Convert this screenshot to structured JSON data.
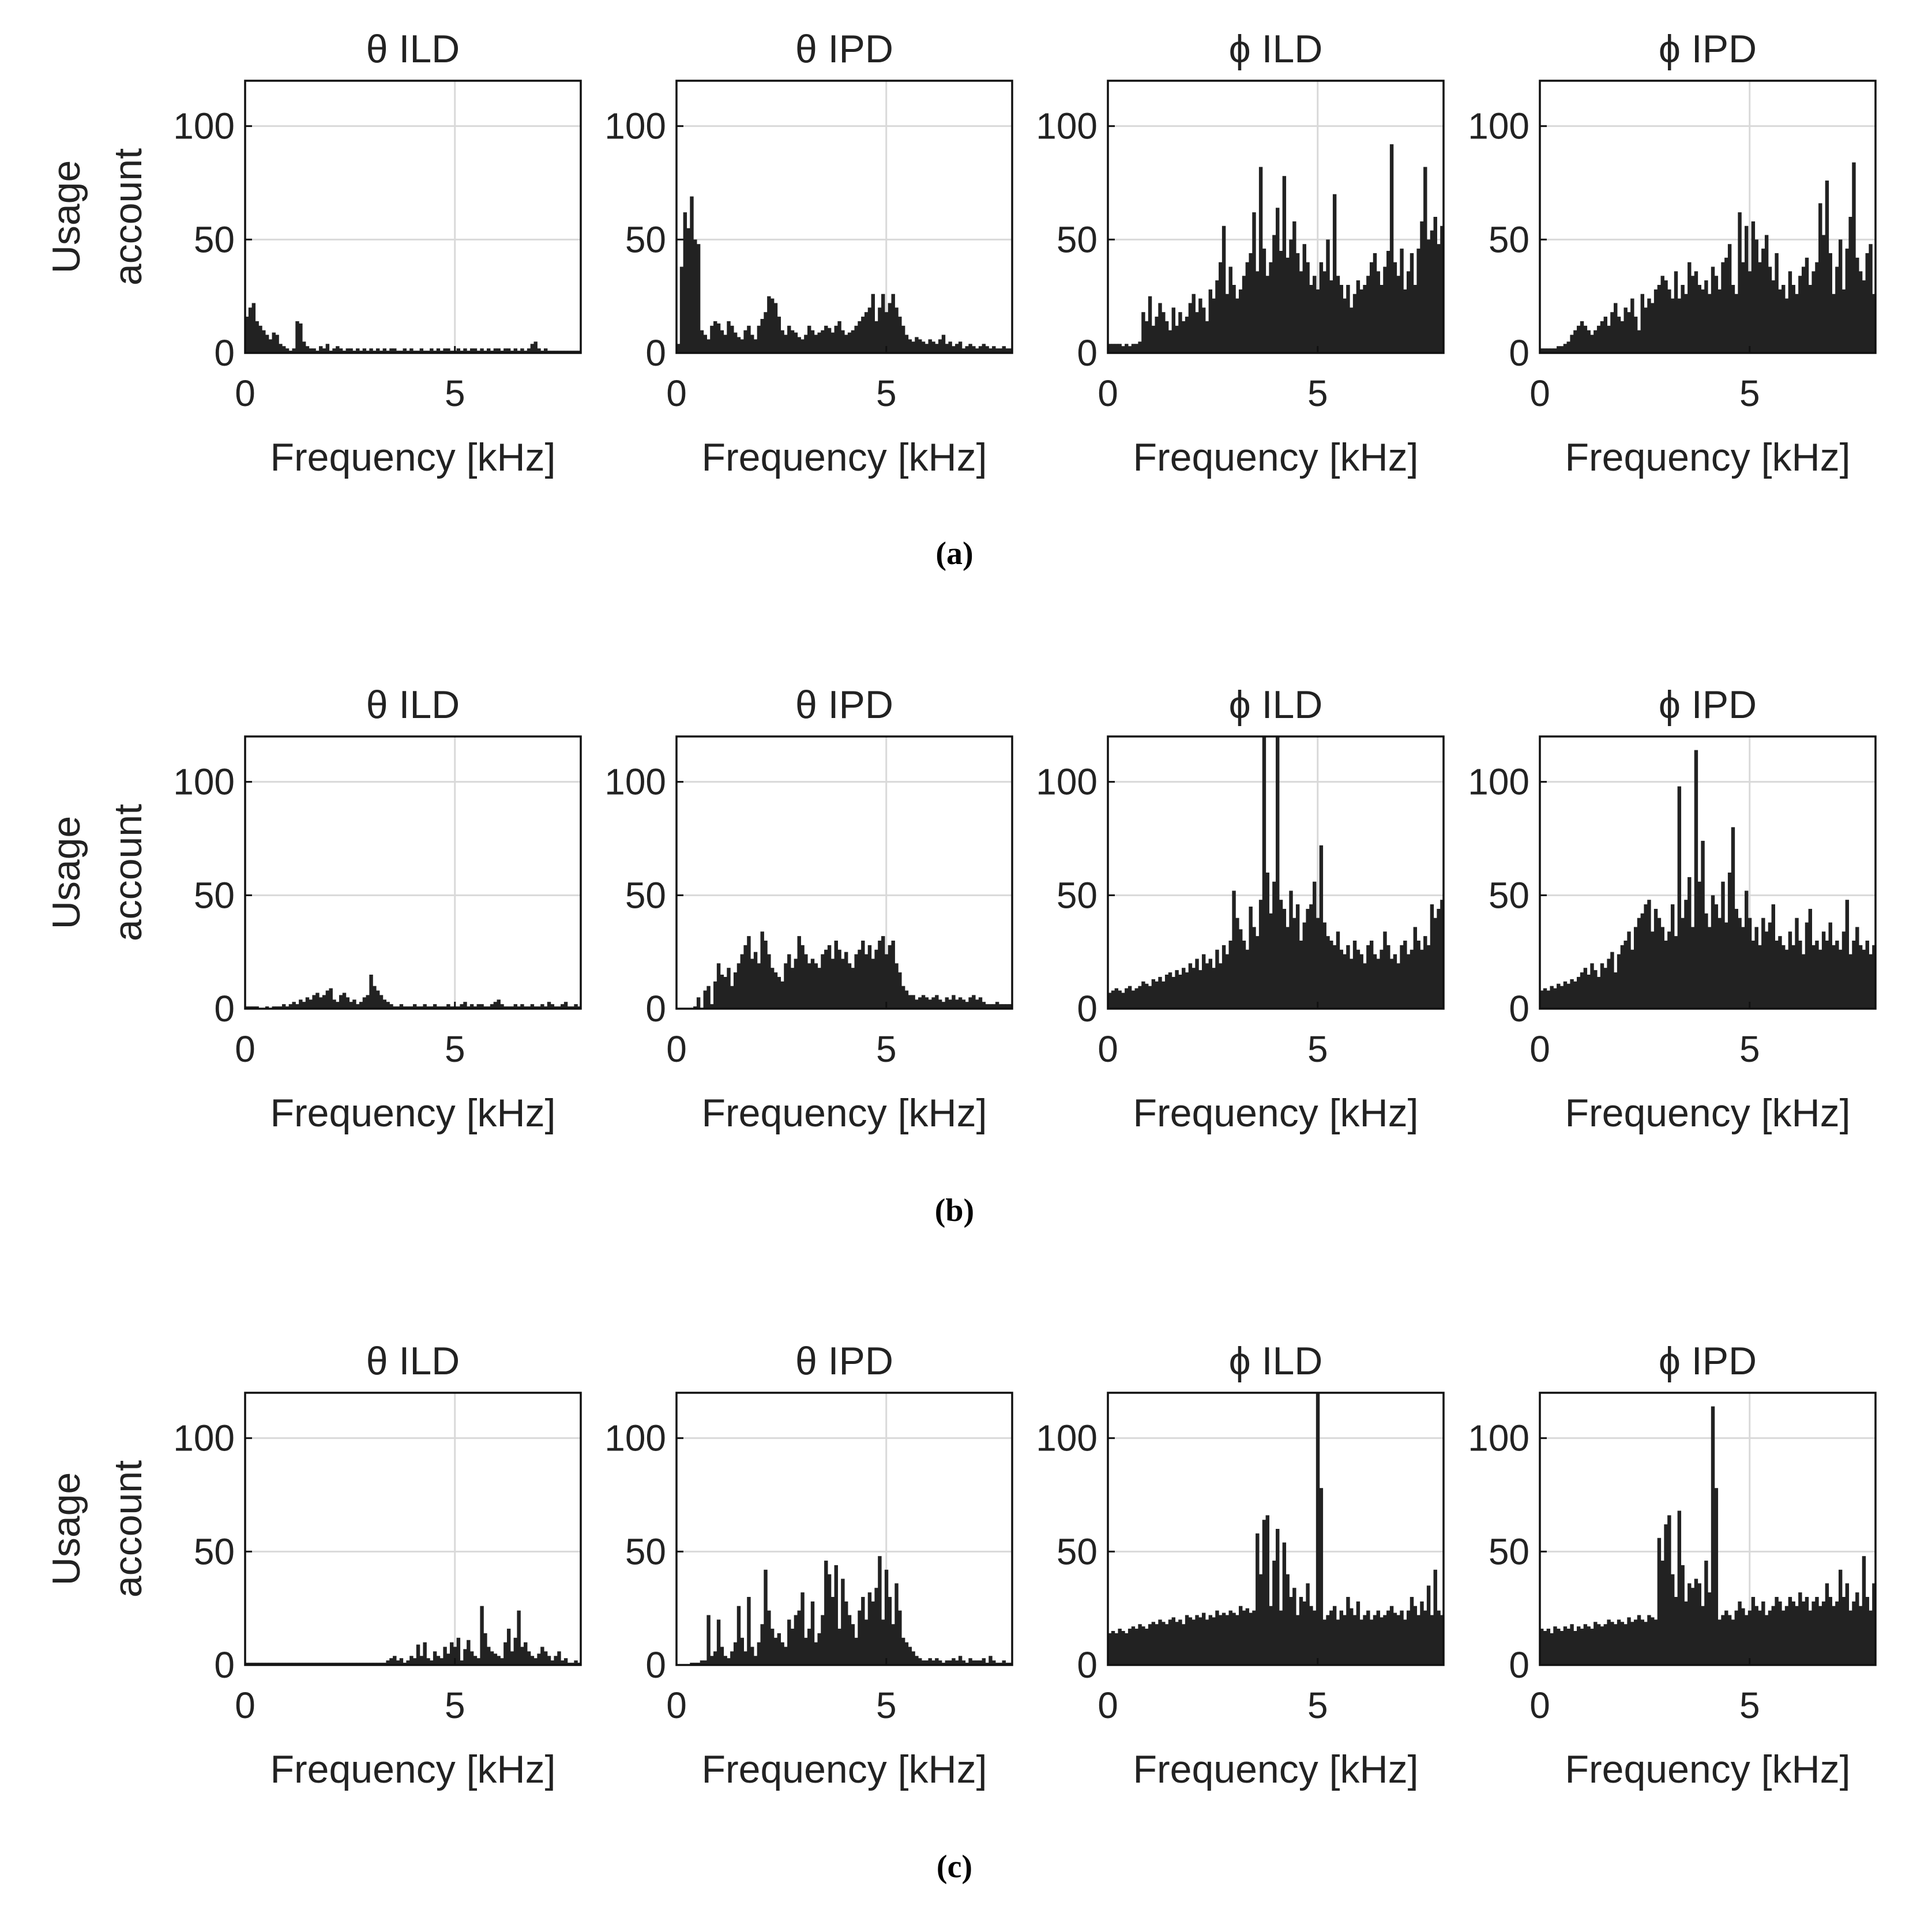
{
  "figure": {
    "ylabel_line1": "Usage",
    "ylabel_line2": "account",
    "row_captions": [
      "(a)",
      "(b)",
      "(c)"
    ],
    "bar_color": "#222222",
    "grid_color": "#d9d9d9"
  },
  "chart_data": [
    {
      "type": "bar",
      "row": "(a)",
      "title": "θ ILD",
      "xlabel": "Frequency [kHz]",
      "ylabel": "Usage account",
      "xlim": [
        0,
        8
      ],
      "ylim": [
        0,
        120
      ],
      "xticks": [
        0,
        5
      ],
      "yticks": [
        0,
        50,
        100
      ],
      "grid": true,
      "x_start": 0,
      "x_end": 8,
      "values": [
        16,
        20,
        22,
        14,
        12,
        10,
        8,
        6,
        9,
        8,
        4,
        3,
        2,
        1,
        2,
        14,
        13,
        5,
        3,
        2,
        2,
        1,
        3,
        2,
        4,
        1,
        2,
        3,
        2,
        1,
        2,
        2,
        1,
        2,
        1,
        2,
        1,
        2,
        1,
        2,
        1,
        2,
        1,
        2,
        2,
        1,
        1,
        2,
        1,
        2,
        1,
        1,
        2,
        1,
        1,
        2,
        1,
        2,
        1,
        2,
        2,
        1,
        1,
        2,
        1,
        2,
        1,
        2,
        2,
        1,
        2,
        1,
        2,
        1,
        2,
        2,
        1,
        2,
        2,
        1,
        2,
        1,
        2,
        1,
        2,
        4,
        5,
        2,
        1,
        2,
        1,
        1,
        1,
        1,
        1,
        1,
        1,
        1,
        1,
        1
      ]
    },
    {
      "type": "bar",
      "row": "(a)",
      "title": "θ IPD",
      "xlabel": "Frequency [kHz]",
      "ylabel": "Usage account",
      "xlim": [
        0,
        8
      ],
      "ylim": [
        0,
        120
      ],
      "xticks": [
        0,
        5
      ],
      "yticks": [
        0,
        50,
        100
      ],
      "grid": true,
      "x_start": 0,
      "x_end": 8,
      "values": [
        4,
        38,
        62,
        55,
        69,
        50,
        48,
        10,
        8,
        6,
        12,
        14,
        13,
        10,
        8,
        14,
        12,
        9,
        7,
        6,
        10,
        12,
        8,
        6,
        12,
        15,
        18,
        25,
        24,
        22,
        16,
        10,
        8,
        12,
        10,
        9,
        7,
        6,
        8,
        12,
        10,
        8,
        9,
        10,
        12,
        11,
        9,
        12,
        14,
        10,
        8,
        9,
        10,
        12,
        14,
        16,
        18,
        20,
        26,
        14,
        20,
        26,
        18,
        22,
        26,
        20,
        16,
        12,
        8,
        6,
        5,
        7,
        6,
        5,
        4,
        6,
        5,
        4,
        6,
        8,
        4,
        5,
        3,
        4,
        5,
        2,
        3,
        4,
        3,
        2,
        3,
        4,
        3,
        2,
        3,
        2,
        2,
        3,
        2,
        2
      ]
    },
    {
      "type": "bar",
      "row": "(a)",
      "title": "ϕ ILD",
      "xlabel": "Frequency [kHz]",
      "ylabel": "Usage account",
      "xlim": [
        0,
        8
      ],
      "ylim": [
        0,
        120
      ],
      "xticks": [
        0,
        5
      ],
      "yticks": [
        0,
        50,
        100
      ],
      "grid": true,
      "x_start": 0,
      "x_end": 8,
      "values": [
        4,
        4,
        4,
        4,
        3,
        4,
        3,
        4,
        4,
        5,
        18,
        14,
        25,
        12,
        16,
        22,
        18,
        14,
        10,
        20,
        12,
        18,
        14,
        16,
        22,
        26,
        18,
        24,
        20,
        14,
        28,
        24,
        32,
        40,
        56,
        26,
        38,
        30,
        24,
        28,
        34,
        40,
        44,
        62,
        36,
        82,
        46,
        34,
        40,
        52,
        64,
        45,
        78,
        42,
        50,
        58,
        44,
        36,
        48,
        40,
        30,
        34,
        28,
        40,
        36,
        50,
        32,
        70,
        34,
        30,
        24,
        30,
        20,
        26,
        32,
        28,
        30,
        34,
        40,
        44,
        36,
        30,
        38,
        45,
        92,
        40,
        34,
        46,
        28,
        36,
        44,
        30,
        46,
        58,
        82,
        50,
        54,
        60,
        48,
        56
      ]
    },
    {
      "type": "bar",
      "row": "(a)",
      "title": "ϕ IPD",
      "xlabel": "Frequency [kHz]",
      "ylabel": "Usage account",
      "xlim": [
        0,
        8
      ],
      "ylim": [
        0,
        120
      ],
      "xticks": [
        0,
        5
      ],
      "yticks": [
        0,
        50,
        100
      ],
      "grid": true,
      "x_start": 0,
      "x_end": 8,
      "values": [
        2,
        2,
        2,
        2,
        2,
        3,
        3,
        4,
        5,
        8,
        10,
        12,
        14,
        12,
        10,
        8,
        10,
        12,
        14,
        16,
        12,
        18,
        22,
        16,
        14,
        20,
        18,
        24,
        16,
        10,
        26,
        20,
        24,
        22,
        28,
        30,
        34,
        32,
        28,
        24,
        36,
        24,
        30,
        26,
        40,
        34,
        36,
        30,
        28,
        32,
        26,
        38,
        34,
        28,
        40,
        42,
        48,
        30,
        26,
        62,
        40,
        56,
        36,
        58,
        50,
        40,
        46,
        52,
        38,
        32,
        44,
        28,
        30,
        24,
        36,
        30,
        26,
        34,
        38,
        42,
        30,
        36,
        40,
        66,
        52,
        76,
        44,
        26,
        38,
        50,
        28,
        46,
        60,
        84,
        42,
        36,
        32,
        44,
        48,
        26
      ]
    },
    {
      "type": "bar",
      "row": "(b)",
      "title": "θ ILD",
      "xlabel": "Frequency [kHz]",
      "ylabel": "Usage account",
      "xlim": [
        0,
        8
      ],
      "ylim": [
        0,
        120
      ],
      "xticks": [
        0,
        5
      ],
      "yticks": [
        0,
        50,
        100
      ],
      "grid": true,
      "x_start": 0,
      "x_end": 8,
      "values": [
        1,
        1,
        1,
        1,
        0,
        0,
        1,
        0,
        1,
        1,
        1,
        2,
        1,
        2,
        3,
        2,
        4,
        3,
        5,
        4,
        6,
        7,
        5,
        6,
        8,
        9,
        4,
        3,
        6,
        7,
        5,
        3,
        4,
        2,
        3,
        5,
        6,
        15,
        10,
        8,
        6,
        4,
        3,
        2,
        1,
        1,
        2,
        1,
        1,
        1,
        2,
        1,
        1,
        2,
        1,
        1,
        2,
        1,
        1,
        1,
        2,
        1,
        1,
        1,
        2,
        3,
        1,
        2,
        1,
        2,
        2,
        1,
        1,
        2,
        3,
        4,
        2,
        1,
        1,
        1,
        2,
        1,
        2,
        1,
        1,
        2,
        1,
        1,
        2,
        1,
        3,
        2,
        1,
        1,
        2,
        3,
        1,
        1,
        2,
        1
      ]
    },
    {
      "type": "bar",
      "row": "(b)",
      "title": "θ IPD",
      "xlabel": "Frequency [kHz]",
      "ylabel": "Usage account",
      "xlim": [
        0,
        8
      ],
      "ylim": [
        0,
        120
      ],
      "xticks": [
        0,
        5
      ],
      "yticks": [
        0,
        50,
        100
      ],
      "grid": true,
      "x_start": 0,
      "x_end": 8,
      "values": [
        0,
        0,
        0,
        0,
        0,
        1,
        5,
        0,
        8,
        10,
        2,
        12,
        20,
        15,
        14,
        18,
        10,
        16,
        20,
        24,
        28,
        32,
        22,
        25,
        20,
        34,
        30,
        24,
        18,
        16,
        14,
        12,
        20,
        24,
        18,
        22,
        32,
        28,
        24,
        20,
        22,
        20,
        18,
        24,
        26,
        28,
        22,
        30,
        26,
        22,
        25,
        20,
        18,
        24,
        26,
        30,
        24,
        28,
        22,
        26,
        30,
        32,
        24,
        28,
        30,
        20,
        16,
        10,
        8,
        6,
        6,
        4,
        5,
        6,
        5,
        4,
        5,
        6,
        4,
        3,
        5,
        4,
        6,
        4,
        5,
        4,
        3,
        5,
        6,
        4,
        5,
        3,
        2,
        2,
        2,
        3,
        2,
        2,
        2,
        2
      ]
    },
    {
      "type": "bar",
      "row": "(b)",
      "title": "ϕ ILD",
      "xlabel": "Frequency [kHz]",
      "ylabel": "Usage account",
      "xlim": [
        0,
        8
      ],
      "ylim": [
        0,
        120
      ],
      "xticks": [
        0,
        5
      ],
      "yticks": [
        0,
        50,
        100
      ],
      "grid": true,
      "x_start": 0,
      "x_end": 8,
      "values": [
        7,
        8,
        9,
        8,
        7,
        9,
        10,
        8,
        9,
        10,
        12,
        11,
        10,
        13,
        12,
        14,
        12,
        15,
        16,
        14,
        17,
        15,
        18,
        16,
        20,
        18,
        22,
        17,
        24,
        20,
        22,
        18,
        26,
        20,
        28,
        24,
        30,
        52,
        40,
        35,
        30,
        26,
        45,
        36,
        32,
        48,
        125,
        60,
        42,
        56,
        120,
        48,
        44,
        36,
        52,
        40,
        46,
        30,
        38,
        44,
        46,
        56,
        40,
        72,
        38,
        32,
        30,
        28,
        34,
        26,
        24,
        28,
        22,
        30,
        26,
        24,
        20,
        28,
        30,
        24,
        22,
        26,
        34,
        28,
        22,
        24,
        20,
        28,
        30,
        24,
        26,
        36,
        30,
        26,
        32,
        28,
        46,
        40,
        44,
        48
      ]
    },
    {
      "type": "bar",
      "row": "(b)",
      "title": "ϕ IPD",
      "xlabel": "Frequency [kHz]",
      "ylabel": "Usage account",
      "xlim": [
        0,
        8
      ],
      "ylim": [
        0,
        120
      ],
      "xticks": [
        0,
        5
      ],
      "yticks": [
        0,
        50,
        100
      ],
      "grid": true,
      "x_start": 0,
      "x_end": 8,
      "values": [
        8,
        9,
        8,
        10,
        9,
        11,
        10,
        12,
        11,
        13,
        12,
        14,
        16,
        18,
        15,
        20,
        17,
        14,
        20,
        18,
        22,
        25,
        16,
        24,
        28,
        30,
        34,
        26,
        36,
        40,
        42,
        46,
        48,
        34,
        44,
        40,
        36,
        30,
        34,
        46,
        32,
        98,
        40,
        48,
        58,
        36,
        114,
        56,
        74,
        42,
        36,
        50,
        46,
        40,
        56,
        38,
        60,
        80,
        44,
        40,
        36,
        52,
        40,
        30,
        36,
        28,
        40,
        34,
        38,
        46,
        30,
        32,
        28,
        26,
        34,
        28,
        40,
        30,
        24,
        38,
        44,
        28,
        30,
        26,
        34,
        30,
        38,
        28,
        30,
        26,
        34,
        48,
        24,
        30,
        36,
        28,
        26,
        30,
        24,
        28
      ]
    },
    {
      "type": "bar",
      "row": "(c)",
      "title": "θ ILD",
      "xlabel": "Frequency [kHz]",
      "ylabel": "Usage account",
      "xlim": [
        0,
        8
      ],
      "ylim": [
        0,
        120
      ],
      "xticks": [
        0,
        5
      ],
      "yticks": [
        0,
        50,
        100
      ],
      "grid": true,
      "x_start": 0,
      "x_end": 8,
      "values": [
        1,
        1,
        1,
        1,
        1,
        1,
        1,
        1,
        1,
        1,
        1,
        1,
        1,
        1,
        1,
        1,
        1,
        1,
        1,
        1,
        1,
        1,
        1,
        1,
        1,
        1,
        1,
        1,
        1,
        1,
        1,
        1,
        1,
        1,
        1,
        1,
        1,
        1,
        1,
        1,
        1,
        1,
        2,
        3,
        4,
        2,
        3,
        1,
        2,
        4,
        3,
        9,
        4,
        10,
        3,
        2,
        6,
        4,
        3,
        8,
        5,
        10,
        8,
        12,
        2,
        7,
        11,
        6,
        4,
        3,
        26,
        14,
        8,
        6,
        5,
        4,
        3,
        10,
        16,
        6,
        12,
        24,
        8,
        10,
        6,
        4,
        3,
        5,
        8,
        6,
        4,
        2,
        4,
        6,
        2,
        3,
        1,
        1,
        2,
        1
      ]
    },
    {
      "type": "bar",
      "row": "(c)",
      "title": "θ IPD",
      "xlabel": "Frequency [kHz]",
      "ylabel": "Usage account",
      "xlim": [
        0,
        8
      ],
      "ylim": [
        0,
        120
      ],
      "xticks": [
        0,
        5
      ],
      "yticks": [
        0,
        50,
        100
      ],
      "grid": true,
      "x_start": 0,
      "x_end": 8,
      "values": [
        0,
        0,
        0,
        0,
        1,
        1,
        1,
        2,
        2,
        22,
        4,
        6,
        20,
        8,
        4,
        3,
        6,
        10,
        26,
        12,
        6,
        30,
        8,
        4,
        10,
        18,
        42,
        24,
        16,
        12,
        14,
        10,
        8,
        20,
        16,
        22,
        24,
        32,
        12,
        16,
        28,
        10,
        14,
        22,
        46,
        40,
        30,
        44,
        16,
        38,
        28,
        22,
        18,
        12,
        24,
        30,
        20,
        32,
        28,
        34,
        48,
        20,
        42,
        30,
        18,
        36,
        24,
        12,
        10,
        8,
        6,
        4,
        3,
        2,
        2,
        3,
        2,
        3,
        2,
        1,
        2,
        2,
        3,
        2,
        4,
        2,
        1,
        3,
        2,
        2,
        2,
        3,
        1,
        4,
        2,
        1,
        1,
        2,
        1,
        1
      ]
    },
    {
      "type": "bar",
      "row": "(c)",
      "title": "ϕ ILD",
      "xlabel": "Frequency [kHz]",
      "ylabel": "Usage account",
      "xlim": [
        0,
        8
      ],
      "ylim": [
        0,
        120
      ],
      "xticks": [
        0,
        5
      ],
      "yticks": [
        0,
        50,
        100
      ],
      "grid": true,
      "x_start": 0,
      "x_end": 8,
      "values": [
        14,
        15,
        14,
        16,
        15,
        14,
        16,
        17,
        16,
        18,
        17,
        16,
        18,
        19,
        18,
        20,
        19,
        18,
        20,
        21,
        19,
        20,
        18,
        22,
        21,
        20,
        22,
        21,
        23,
        20,
        22,
        21,
        24,
        22,
        23,
        22,
        24,
        23,
        22,
        26,
        24,
        25,
        23,
        24,
        58,
        40,
        64,
        66,
        26,
        46,
        60,
        24,
        54,
        40,
        30,
        34,
        22,
        30,
        28,
        36,
        26,
        24,
        120,
        78,
        20,
        22,
        24,
        26,
        20,
        24,
        22,
        30,
        25,
        22,
        28,
        20,
        22,
        24,
        20,
        22,
        24,
        21,
        22,
        24,
        26,
        23,
        22,
        24,
        20,
        24,
        30,
        26,
        22,
        28,
        24,
        35,
        22,
        42,
        24,
        22
      ]
    },
    {
      "type": "bar",
      "row": "(c)",
      "title": "ϕ IPD",
      "xlabel": "Frequency [kHz]",
      "ylabel": "Usage account",
      "xlim": [
        0,
        8
      ],
      "ylim": [
        0,
        120
      ],
      "xticks": [
        0,
        5
      ],
      "yticks": [
        0,
        50,
        100
      ],
      "grid": true,
      "x_start": 0,
      "x_end": 8,
      "values": [
        16,
        15,
        16,
        14,
        17,
        16,
        15,
        17,
        16,
        18,
        15,
        17,
        16,
        18,
        17,
        16,
        19,
        18,
        17,
        18,
        20,
        19,
        18,
        20,
        19,
        18,
        21,
        19,
        20,
        22,
        20,
        19,
        22,
        21,
        20,
        56,
        46,
        62,
        66,
        40,
        30,
        68,
        44,
        28,
        36,
        34,
        38,
        36,
        26,
        46,
        32,
        114,
        78,
        20,
        22,
        24,
        22,
        20,
        24,
        28,
        25,
        22,
        24,
        30,
        26,
        24,
        28,
        22,
        24,
        26,
        30,
        28,
        24,
        26,
        30,
        28,
        26,
        32,
        28,
        30,
        24,
        28,
        30,
        26,
        28,
        36,
        30,
        26,
        28,
        42,
        30,
        36,
        24,
        28,
        32,
        26,
        48,
        30,
        24,
        36
      ]
    }
  ]
}
